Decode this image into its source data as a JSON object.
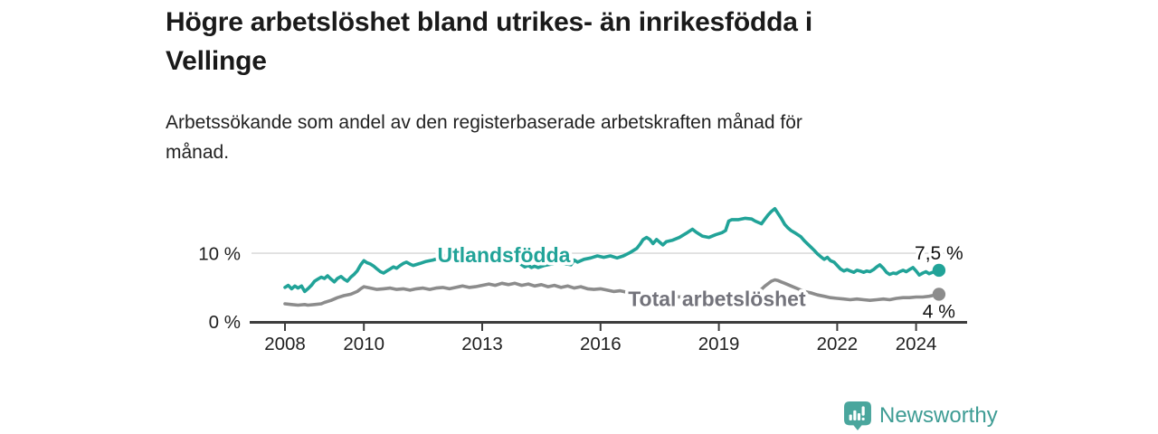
{
  "header": {
    "title": "Högre arbetslöshet bland utrikes- än inrikesfödda i\nVellinge",
    "subtitle": "Arbetssökande som andel av den registerbaserade arbetskraften månad för\nmånad."
  },
  "footer": {
    "brand": "Newsworthy"
  },
  "colors": {
    "accent_teal": "#21a398",
    "logo_teal": "#4aa69d",
    "brand_text_teal": "#3e9c94",
    "series_gray": "#8c8c8c",
    "gray_label": "#73737b",
    "axis": "#3d3d3d",
    "gridline": "#d5d5d5",
    "text_dark": "#1a1a1a"
  },
  "chart_data": {
    "type": "line",
    "unit": "%",
    "x_range": [
      2008,
      2024.58
    ],
    "ylim": [
      0,
      17
    ],
    "x_ticks": [
      {
        "year": 2008,
        "label": "2008"
      },
      {
        "year": 2010,
        "label": "2010"
      },
      {
        "year": 2013,
        "label": "2013"
      },
      {
        "year": 2016,
        "label": "2016"
      },
      {
        "year": 2019,
        "label": "2019"
      },
      {
        "year": 2022,
        "label": "2022"
      },
      {
        "year": 2024,
        "label": "2024"
      }
    ],
    "y_ticks": [
      {
        "value": 0,
        "label": "0 %",
        "grid": false
      },
      {
        "value": 10,
        "label": "10 %",
        "grid": true
      }
    ],
    "series": [
      {
        "name": "Total arbetslöshet",
        "color": "#8c8c8c",
        "label_color": "#73737b",
        "end_label": "4 %",
        "end_label_position": "below",
        "label_anchor": {
          "x": 2018.95,
          "y": 3.35
        },
        "points": [
          [
            2008.0,
            2.6
          ],
          [
            2008.17,
            2.5
          ],
          [
            2008.33,
            2.4
          ],
          [
            2008.5,
            2.5
          ],
          [
            2008.58,
            2.4
          ],
          [
            2008.75,
            2.5
          ],
          [
            2008.92,
            2.6
          ],
          [
            2009.0,
            2.8
          ],
          [
            2009.17,
            3.1
          ],
          [
            2009.33,
            3.5
          ],
          [
            2009.5,
            3.8
          ],
          [
            2009.67,
            4.0
          ],
          [
            2009.83,
            4.4
          ],
          [
            2009.92,
            4.8
          ],
          [
            2010.0,
            5.1
          ],
          [
            2010.17,
            4.9
          ],
          [
            2010.33,
            4.7
          ],
          [
            2010.5,
            4.8
          ],
          [
            2010.67,
            4.9
          ],
          [
            2010.83,
            4.7
          ],
          [
            2011.0,
            4.8
          ],
          [
            2011.17,
            4.6
          ],
          [
            2011.33,
            4.8
          ],
          [
            2011.5,
            4.9
          ],
          [
            2011.67,
            4.7
          ],
          [
            2011.83,
            4.9
          ],
          [
            2012.0,
            5.0
          ],
          [
            2012.17,
            4.8
          ],
          [
            2012.33,
            5.0
          ],
          [
            2012.5,
            5.2
          ],
          [
            2012.67,
            5.0
          ],
          [
            2012.83,
            5.1
          ],
          [
            2013.0,
            5.3
          ],
          [
            2013.17,
            5.5
          ],
          [
            2013.33,
            5.3
          ],
          [
            2013.5,
            5.6
          ],
          [
            2013.67,
            5.4
          ],
          [
            2013.83,
            5.6
          ],
          [
            2014.0,
            5.3
          ],
          [
            2014.17,
            5.5
          ],
          [
            2014.33,
            5.2
          ],
          [
            2014.5,
            5.4
          ],
          [
            2014.67,
            5.1
          ],
          [
            2014.83,
            5.3
          ],
          [
            2015.0,
            5.0
          ],
          [
            2015.17,
            5.2
          ],
          [
            2015.33,
            4.9
          ],
          [
            2015.5,
            5.1
          ],
          [
            2015.67,
            4.8
          ],
          [
            2015.83,
            4.7
          ],
          [
            2016.0,
            4.8
          ],
          [
            2016.17,
            4.6
          ],
          [
            2016.33,
            4.4
          ],
          [
            2016.5,
            4.5
          ],
          [
            2016.67,
            4.3
          ],
          [
            2016.83,
            4.1
          ],
          [
            2017.0,
            3.9
          ],
          [
            2017.17,
            4.0
          ],
          [
            2017.33,
            3.8
          ],
          [
            2017.5,
            3.9
          ],
          [
            2017.67,
            3.7
          ],
          [
            2017.83,
            3.8
          ],
          [
            2018.0,
            3.6
          ],
          [
            2018.17,
            3.7
          ],
          [
            2018.33,
            3.5
          ],
          [
            2018.5,
            3.6
          ],
          [
            2018.67,
            3.5
          ],
          [
            2018.83,
            3.6
          ],
          [
            2019.0,
            3.5
          ],
          [
            2019.17,
            3.6
          ],
          [
            2019.33,
            3.5
          ],
          [
            2019.5,
            3.7
          ],
          [
            2019.67,
            3.8
          ],
          [
            2019.83,
            4.0
          ],
          [
            2020.0,
            4.3
          ],
          [
            2020.17,
            5.2
          ],
          [
            2020.33,
            5.9
          ],
          [
            2020.42,
            6.1
          ],
          [
            2020.5,
            6.0
          ],
          [
            2020.58,
            5.8
          ],
          [
            2020.67,
            5.6
          ],
          [
            2020.83,
            5.2
          ],
          [
            2021.0,
            4.8
          ],
          [
            2021.17,
            4.4
          ],
          [
            2021.33,
            4.2
          ],
          [
            2021.5,
            3.9
          ],
          [
            2021.67,
            3.7
          ],
          [
            2021.83,
            3.5
          ],
          [
            2022.0,
            3.4
          ],
          [
            2022.17,
            3.3
          ],
          [
            2022.33,
            3.2
          ],
          [
            2022.5,
            3.3
          ],
          [
            2022.67,
            3.2
          ],
          [
            2022.83,
            3.1
          ],
          [
            2023.0,
            3.2
          ],
          [
            2023.17,
            3.3
          ],
          [
            2023.33,
            3.2
          ],
          [
            2023.5,
            3.4
          ],
          [
            2023.67,
            3.5
          ],
          [
            2023.83,
            3.5
          ],
          [
            2024.0,
            3.6
          ],
          [
            2024.17,
            3.6
          ],
          [
            2024.33,
            3.7
          ],
          [
            2024.42,
            3.8
          ],
          [
            2024.58,
            4.0
          ]
        ]
      },
      {
        "name": "Utlandsfödda",
        "color": "#21a398",
        "end_label": "7,5 %",
        "end_label_position": "above",
        "label_anchor": {
          "x": 2013.55,
          "y": 9.75
        },
        "points": [
          [
            2008.0,
            5.0
          ],
          [
            2008.08,
            5.3
          ],
          [
            2008.17,
            4.8
          ],
          [
            2008.25,
            5.2
          ],
          [
            2008.33,
            4.9
          ],
          [
            2008.42,
            5.2
          ],
          [
            2008.5,
            4.4
          ],
          [
            2008.58,
            4.8
          ],
          [
            2008.67,
            5.3
          ],
          [
            2008.75,
            5.9
          ],
          [
            2008.83,
            6.2
          ],
          [
            2008.92,
            6.5
          ],
          [
            2009.0,
            6.3
          ],
          [
            2009.08,
            6.7
          ],
          [
            2009.17,
            6.2
          ],
          [
            2009.25,
            5.8
          ],
          [
            2009.33,
            6.3
          ],
          [
            2009.42,
            6.6
          ],
          [
            2009.5,
            6.2
          ],
          [
            2009.58,
            5.9
          ],
          [
            2009.67,
            6.5
          ],
          [
            2009.75,
            6.9
          ],
          [
            2009.83,
            7.4
          ],
          [
            2009.92,
            8.3
          ],
          [
            2010.0,
            8.9
          ],
          [
            2010.08,
            8.6
          ],
          [
            2010.17,
            8.4
          ],
          [
            2010.25,
            8.1
          ],
          [
            2010.33,
            7.7
          ],
          [
            2010.42,
            7.3
          ],
          [
            2010.5,
            7.1
          ],
          [
            2010.58,
            7.4
          ],
          [
            2010.67,
            7.7
          ],
          [
            2010.75,
            8.0
          ],
          [
            2010.83,
            7.8
          ],
          [
            2010.92,
            8.2
          ],
          [
            2011.0,
            8.5
          ],
          [
            2011.08,
            8.7
          ],
          [
            2011.17,
            8.4
          ],
          [
            2011.25,
            8.2
          ],
          [
            2011.42,
            8.5
          ],
          [
            2011.58,
            8.8
          ],
          [
            2011.75,
            9.0
          ],
          [
            2011.92,
            9.3
          ],
          [
            2012.08,
            9.7
          ],
          [
            2012.25,
            10.0
          ],
          [
            2012.42,
            10.3
          ],
          [
            2012.58,
            10.1
          ],
          [
            2012.75,
            10.3
          ],
          [
            2012.92,
            10.1
          ],
          [
            2013.08,
            9.9
          ],
          [
            2013.25,
            10.1
          ],
          [
            2013.42,
            9.8
          ],
          [
            2013.58,
            9.5
          ],
          [
            2013.75,
            9.2
          ],
          [
            2013.92,
            8.7
          ],
          [
            2014.0,
            8.3
          ],
          [
            2014.08,
            8.0
          ],
          [
            2014.17,
            8.2
          ],
          [
            2014.25,
            7.9
          ],
          [
            2014.33,
            8.1
          ],
          [
            2014.42,
            7.9
          ],
          [
            2014.58,
            8.2
          ],
          [
            2014.75,
            8.4
          ],
          [
            2014.92,
            8.6
          ],
          [
            2015.08,
            8.5
          ],
          [
            2015.25,
            8.3
          ],
          [
            2015.33,
            9.0
          ],
          [
            2015.42,
            8.7
          ],
          [
            2015.58,
            9.1
          ],
          [
            2015.75,
            9.3
          ],
          [
            2015.92,
            9.6
          ],
          [
            2016.08,
            9.4
          ],
          [
            2016.25,
            9.6
          ],
          [
            2016.42,
            9.3
          ],
          [
            2016.58,
            9.6
          ],
          [
            2016.75,
            10.1
          ],
          [
            2016.92,
            10.7
          ],
          [
            2017.0,
            11.3
          ],
          [
            2017.08,
            12.0
          ],
          [
            2017.17,
            12.3
          ],
          [
            2017.25,
            12.0
          ],
          [
            2017.33,
            11.4
          ],
          [
            2017.42,
            12.0
          ],
          [
            2017.5,
            11.6
          ],
          [
            2017.58,
            11.2
          ],
          [
            2017.67,
            11.7
          ],
          [
            2017.83,
            11.9
          ],
          [
            2018.0,
            12.3
          ],
          [
            2018.17,
            12.9
          ],
          [
            2018.33,
            13.5
          ],
          [
            2018.42,
            13.1
          ],
          [
            2018.58,
            12.5
          ],
          [
            2018.75,
            12.3
          ],
          [
            2018.92,
            12.7
          ],
          [
            2019.08,
            13.0
          ],
          [
            2019.17,
            13.3
          ],
          [
            2019.25,
            14.7
          ],
          [
            2019.33,
            14.9
          ],
          [
            2019.5,
            14.9
          ],
          [
            2019.67,
            15.1
          ],
          [
            2019.83,
            15.0
          ],
          [
            2019.92,
            14.7
          ],
          [
            2020.08,
            14.3
          ],
          [
            2020.17,
            15.0
          ],
          [
            2020.25,
            15.6
          ],
          [
            2020.33,
            16.1
          ],
          [
            2020.42,
            16.5
          ],
          [
            2020.5,
            15.8
          ],
          [
            2020.58,
            15.1
          ],
          [
            2020.67,
            14.2
          ],
          [
            2020.75,
            13.7
          ],
          [
            2020.83,
            13.3
          ],
          [
            2020.92,
            13.0
          ],
          [
            2021.08,
            12.4
          ],
          [
            2021.17,
            11.8
          ],
          [
            2021.33,
            10.9
          ],
          [
            2021.42,
            10.4
          ],
          [
            2021.5,
            9.9
          ],
          [
            2021.58,
            9.5
          ],
          [
            2021.67,
            9.1
          ],
          [
            2021.75,
            9.4
          ],
          [
            2021.83,
            8.9
          ],
          [
            2021.92,
            8.7
          ],
          [
            2022.0,
            8.2
          ],
          [
            2022.08,
            7.7
          ],
          [
            2022.17,
            7.4
          ],
          [
            2022.25,
            7.6
          ],
          [
            2022.33,
            7.4
          ],
          [
            2022.42,
            7.2
          ],
          [
            2022.5,
            7.5
          ],
          [
            2022.58,
            7.4
          ],
          [
            2022.67,
            7.2
          ],
          [
            2022.75,
            7.4
          ],
          [
            2022.83,
            7.3
          ],
          [
            2022.92,
            7.6
          ],
          [
            2023.0,
            8.0
          ],
          [
            2023.08,
            8.3
          ],
          [
            2023.17,
            7.8
          ],
          [
            2023.25,
            7.2
          ],
          [
            2023.33,
            6.9
          ],
          [
            2023.42,
            7.1
          ],
          [
            2023.5,
            7.0
          ],
          [
            2023.58,
            7.3
          ],
          [
            2023.67,
            7.5
          ],
          [
            2023.75,
            7.3
          ],
          [
            2023.83,
            7.6
          ],
          [
            2023.92,
            7.9
          ],
          [
            2024.0,
            7.4
          ],
          [
            2024.08,
            6.8
          ],
          [
            2024.17,
            7.1
          ],
          [
            2024.25,
            7.3
          ],
          [
            2024.33,
            7.0
          ],
          [
            2024.42,
            7.2
          ],
          [
            2024.5,
            7.3
          ],
          [
            2024.58,
            7.5
          ]
        ]
      }
    ]
  }
}
